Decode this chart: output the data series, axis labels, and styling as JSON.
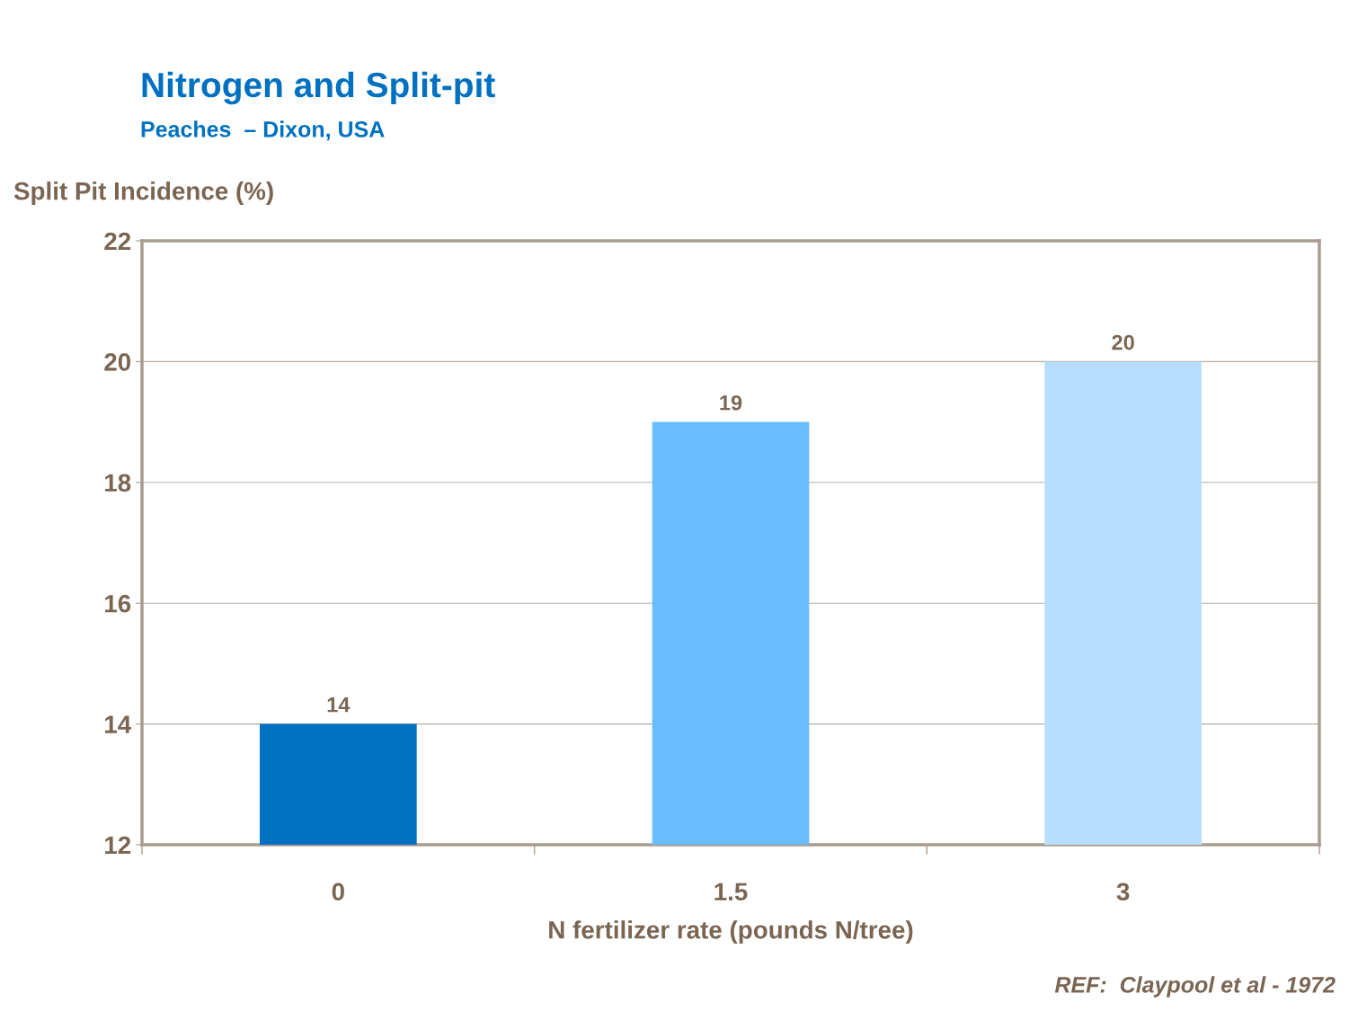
{
  "chart_data": {
    "type": "bar",
    "title": "Nitrogen and Split-pit",
    "subtitle": "Peaches  – Dixon, USA",
    "xlabel": "N fertilizer rate (pounds N/tree)",
    "ylabel": "Split Pit Incidence (%)",
    "categories": [
      "0",
      "1.5",
      "3"
    ],
    "values": [
      14,
      19,
      20
    ],
    "colors": [
      "#0070c0",
      "#69bdfe",
      "#b7dffd"
    ],
    "ylim": [
      12,
      22
    ],
    "yticks": [
      12,
      14,
      16,
      18,
      20,
      22
    ],
    "grid": "y",
    "data_labels": true,
    "annotations": [
      "REF:  Claypool et al - 1972"
    ]
  }
}
